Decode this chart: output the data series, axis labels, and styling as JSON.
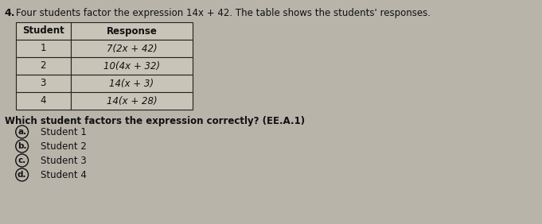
{
  "question_number": "4.",
  "question_text": "Four students factor the expression 14x + 42. The table shows the students' responses.",
  "table_headers": [
    "Student",
    "Response"
  ],
  "table_rows": [
    [
      "1",
      "7(2x + 42)"
    ],
    [
      "2",
      "10(4x + 32)"
    ],
    [
      "3",
      "14(x + 3)"
    ],
    [
      "4",
      "14(x + 28)"
    ]
  ],
  "sub_question": "Which student factors the expression correctly? (EE.A.1)",
  "choices": [
    "Student 1",
    "Student 2",
    "Student 3",
    "Student 4"
  ],
  "choice_labels": [
    "a.",
    "b.",
    "c.",
    "d."
  ],
  "bg_color": "#b8b4aa",
  "text_color": "#111111",
  "table_border_color": "#222222",
  "table_bg_color": "#c8c4b8",
  "fig_width": 6.81,
  "fig_height": 2.82,
  "dpi": 100
}
